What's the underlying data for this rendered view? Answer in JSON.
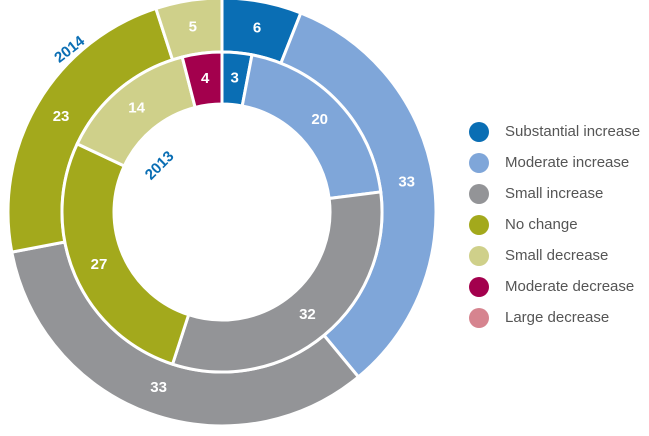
{
  "chart_data": {
    "type": "donut",
    "categories": [
      "Substantial increase",
      "Moderate increase",
      "Small increase",
      "No change",
      "Small decrease",
      "Moderate decrease",
      "Large decrease"
    ],
    "colors": [
      "#0a6eb4",
      "#7fa6d9",
      "#939497",
      "#a3a91c",
      "#cfd08a",
      "#a3004d",
      "#d6848f"
    ],
    "series": [
      {
        "name": "2014",
        "values": [
          6,
          33,
          33,
          23,
          5,
          0,
          0
        ]
      },
      {
        "name": "2013",
        "values": [
          3,
          20,
          32,
          27,
          14,
          4,
          0
        ]
      }
    ]
  }
}
